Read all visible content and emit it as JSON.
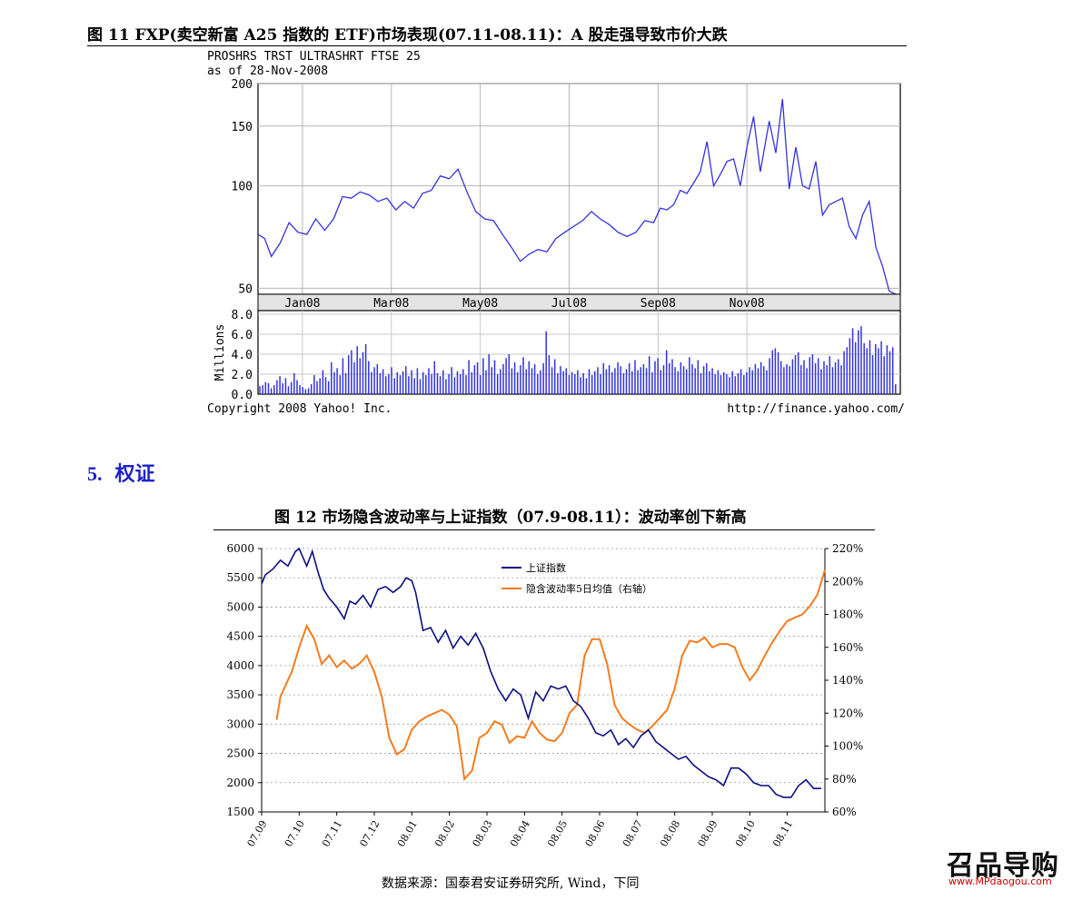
{
  "figure11": {
    "title": "图 11 FXP(卖空新富 A25 指数的 ETF)市场表现(07.11-08.11)：A 股走强导致市价大跌",
    "chart_header_line1": "PROSHRS TRST ULTRASHRT FTSE 25",
    "chart_header_line2": "as of 28-Nov-2008",
    "copyright": "Copyright 2008 Yahoo! Inc.",
    "url": "http://finance.yahoo.com/",
    "volume_axis_label": "Millions",
    "line_color": "#3333dd",
    "chart_data": {
      "type": "line",
      "title": "PROSHRS TRST ULTRASHRT FTSE 25",
      "x_ticks": [
        "Jan08",
        "Mar08",
        "May08",
        "Jul08",
        "Sep08",
        "Nov08"
      ],
      "y_ticks": [
        200,
        150,
        100,
        50
      ],
      "y_scale": "log",
      "ylim": [
        48,
        200
      ],
      "grid": true,
      "price_series": {
        "name": "",
        "x_month_index": [
          0.0,
          0.15,
          0.3,
          0.5,
          0.7,
          0.9,
          1.1,
          1.3,
          1.5,
          1.7,
          1.9,
          2.1,
          2.3,
          2.5,
          2.7,
          2.9,
          3.1,
          3.3,
          3.5,
          3.7,
          3.9,
          4.1,
          4.3,
          4.5,
          4.7,
          4.9,
          5.1,
          5.3,
          5.5,
          5.7,
          5.9,
          6.1,
          6.3,
          6.5,
          6.7,
          6.9,
          7.1,
          7.3,
          7.5,
          7.7,
          7.9,
          8.1,
          8.3,
          8.5,
          8.7,
          8.9,
          9.05,
          9.2,
          9.35,
          9.5,
          9.65,
          9.8,
          9.95,
          10.1,
          10.25,
          10.4,
          10.55,
          10.7,
          10.85,
          11.0,
          11.15,
          11.3,
          11.5,
          11.65,
          11.8,
          11.95,
          12.1,
          12.25,
          12.4,
          12.55,
          12.7,
          12.85,
          13.0,
          13.15,
          13.3,
          13.45,
          13.6,
          13.75,
          13.9,
          14.05,
          14.2,
          14.35
        ],
        "values": [
          72,
          70,
          62,
          68,
          78,
          73,
          72,
          80,
          74,
          80,
          93,
          92,
          96,
          94,
          90,
          92,
          85,
          90,
          86,
          95,
          97,
          107,
          105,
          112,
          96,
          84,
          80,
          79,
          72,
          66,
          60,
          63,
          65,
          64,
          70,
          73,
          76,
          79,
          84,
          80,
          77,
          73,
          71,
          73,
          79,
          78,
          86,
          85,
          88,
          97,
          95,
          102,
          110,
          135,
          100,
          108,
          118,
          120,
          100,
          130,
          160,
          110,
          155,
          125,
          180,
          98,
          130,
          100,
          98,
          118,
          82,
          88,
          90,
          92,
          76,
          70,
          82,
          90,
          66,
          58,
          49,
          48
        ]
      },
      "volume_ylim": [
        0,
        8
      ],
      "volume_y_ticks": [
        "8.0",
        "6.0",
        "4.0",
        "2.0",
        "0.0"
      ],
      "volume_values_millions": [
        0.8,
        0.9,
        1.2,
        1.1,
        0.6,
        0.9,
        1.4,
        1.8,
        1.1,
        1.6,
        0.8,
        1.2,
        2.1,
        1.4,
        0.9,
        0.7,
        0.5,
        0.6,
        1.0,
        1.9,
        1.3,
        1.6,
        2.4,
        1.7,
        1.3,
        3.2,
        2.2,
        2.6,
        1.9,
        3.6,
        2.1,
        3.9,
        4.4,
        3.2,
        4.8,
        3.6,
        4.2,
        5.0,
        3.3,
        2.2,
        2.7,
        3.0,
        2.1,
        2.5,
        1.8,
        2.0,
        2.7,
        1.6,
        2.2,
        1.9,
        2.3,
        2.8,
        1.8,
        2.4,
        1.6,
        2.6,
        1.5,
        2.2,
        1.9,
        2.6,
        2.0,
        3.3,
        2.1,
        1.8,
        2.4,
        1.5,
        2.0,
        2.7,
        1.7,
        2.3,
        2.0,
        2.5,
        1.9,
        3.4,
        2.2,
        2.9,
        3.2,
        1.9,
        3.6,
        2.4,
        4.0,
        2.7,
        3.4,
        2.0,
        2.5,
        3.0,
        3.6,
        4.0,
        2.6,
        3.2,
        2.2,
        2.9,
        3.7,
        2.5,
        3.3,
        2.6,
        3.0,
        2.0,
        2.4,
        3.1,
        6.3,
        3.9,
        2.7,
        3.5,
        2.1,
        2.8,
        2.3,
        2.6,
        1.9,
        2.2,
        2.0,
        2.4,
        1.7,
        2.1,
        1.6,
        2.5,
        1.9,
        2.3,
        2.7,
        2.0,
        3.1,
        2.5,
        2.9,
        2.2,
        2.6,
        3.2,
        2.8,
        2.1,
        2.5,
        3.1,
        2.3,
        3.4,
        2.4,
        2.7,
        3.0,
        2.6,
        3.8,
        2.2,
        3.3,
        3.6,
        2.4,
        2.9,
        4.4,
        3.1,
        3.5,
        2.7,
        2.3,
        3.2,
        2.8,
        2.5,
        3.7,
        3.0,
        2.6,
        3.4,
        2.1,
        2.8,
        3.1,
        2.3,
        2.6,
        2.0,
        2.4,
        1.9,
        2.2,
        2.0,
        1.7,
        2.3,
        1.8,
        2.1,
        2.5,
        1.9,
        2.2,
        2.7,
        2.4,
        3.0,
        2.6,
        3.2,
        2.8,
        2.4,
        3.6,
        4.4,
        4.6,
        4.2,
        3.3,
        2.7,
        3.0,
        2.8,
        3.5,
        3.9,
        4.2,
        2.9,
        3.4,
        2.6,
        3.7,
        4.0,
        3.1,
        3.6,
        2.5,
        3.3,
        2.9,
        3.8,
        2.7,
        3.2,
        3.5,
        2.9,
        4.3,
        4.7,
        5.6,
        6.6,
        5.2,
        6.4,
        6.8,
        5.1,
        4.6,
        5.4,
        3.9,
        5.0,
        4.6,
        5.3,
        3.8,
        4.9,
        4.3,
        4.7,
        1.0
      ]
    }
  },
  "section5": {
    "number": "5.",
    "title": "权证"
  },
  "figure12": {
    "title": "图 12  市场隐含波动率与上证指数（07.9-08.11）：波动率创下新高",
    "source_note": "数据来源：国泰君安证券研究所, Wind，下同",
    "colors": {
      "sh_index": "#0b0f80",
      "implied_vol": "#f57c1f"
    },
    "chart_data": {
      "type": "line",
      "title": "",
      "xlabel": "",
      "ylabel": "",
      "grid": true,
      "legend_position": "top-center",
      "x_tick_labels": [
        "07.09",
        "07.10",
        "07.11",
        "07.12",
        "08.01",
        "08.02",
        "08.03",
        "08.04",
        "08.05",
        "08.06",
        "08.07",
        "08.08",
        "08.09",
        "08.10",
        "08.11"
      ],
      "ylim_left": [
        1500,
        6000
      ],
      "y_ticks_left": [
        "6000",
        "5500",
        "5000",
        "4500",
        "4000",
        "3500",
        "3000",
        "2500",
        "2000",
        "1500"
      ],
      "ylim_right": [
        0.6,
        2.2
      ],
      "y_ticks_right": [
        "220%",
        "200%",
        "180%",
        "160%",
        "140%",
        "120%",
        "100%",
        "80%",
        "60%"
      ],
      "series": [
        {
          "name": "上证指数",
          "axis": "left",
          "x": [
            0.0,
            0.1,
            0.3,
            0.5,
            0.7,
            0.9,
            1.0,
            1.2,
            1.35,
            1.5,
            1.65,
            1.8,
            2.0,
            2.2,
            2.35,
            2.5,
            2.7,
            2.9,
            3.1,
            3.3,
            3.5,
            3.7,
            3.85,
            4.0,
            4.1,
            4.3,
            4.5,
            4.7,
            4.9,
            5.1,
            5.3,
            5.5,
            5.7,
            5.9,
            6.1,
            6.3,
            6.5,
            6.7,
            6.9,
            7.1,
            7.3,
            7.5,
            7.7,
            7.9,
            8.1,
            8.3,
            8.5,
            8.7,
            8.9,
            9.1,
            9.3,
            9.5,
            9.7,
            9.9,
            10.1,
            10.3,
            10.5,
            10.7,
            10.9,
            11.1,
            11.3,
            11.5,
            11.7,
            11.9,
            12.1,
            12.3,
            12.5,
            12.7,
            12.9,
            13.1,
            13.3,
            13.5,
            13.7,
            13.9,
            14.1,
            14.3,
            14.5,
            14.7,
            14.9
          ],
          "values": [
            5400,
            5550,
            5650,
            5800,
            5700,
            5950,
            6050,
            5700,
            5950,
            5600,
            5300,
            5150,
            5000,
            4800,
            5100,
            5050,
            5200,
            5000,
            5300,
            5350,
            5250,
            5350,
            5500,
            5450,
            5250,
            4600,
            4650,
            4400,
            4600,
            4300,
            4500,
            4350,
            4550,
            4300,
            3900,
            3600,
            3400,
            3600,
            3500,
            3100,
            3550,
            3400,
            3650,
            3600,
            3650,
            3400,
            3300,
            3100,
            2850,
            2800,
            2900,
            2650,
            2750,
            2600,
            2800,
            2900,
            2700,
            2600,
            2500,
            2400,
            2450,
            2300,
            2200,
            2100,
            2050,
            1950,
            2250,
            2250,
            2150,
            2000,
            1950,
            1950,
            1800,
            1750,
            1750,
            1950,
            2050,
            1900,
            1900
          ]
        },
        {
          "name": "隐含波动率5日均值（右轴）",
          "axis": "right",
          "x": [
            0.4,
            0.5,
            0.6,
            0.8,
            1.0,
            1.2,
            1.4,
            1.6,
            1.8,
            2.0,
            2.2,
            2.4,
            2.6,
            2.8,
            3.0,
            3.2,
            3.4,
            3.6,
            3.8,
            4.0,
            4.2,
            4.4,
            4.6,
            4.8,
            5.0,
            5.2,
            5.4,
            5.6,
            5.8,
            6.0,
            6.2,
            6.4,
            6.6,
            6.8,
            7.0,
            7.2,
            7.4,
            7.6,
            7.8,
            8.0,
            8.2,
            8.4,
            8.6,
            8.8,
            9.0,
            9.2,
            9.4,
            9.6,
            9.8,
            10.0,
            10.2,
            10.4,
            10.6,
            10.8,
            11.0,
            11.2,
            11.4,
            11.6,
            11.8,
            12.0,
            12.2,
            12.4,
            12.6,
            12.8,
            13.0,
            13.2,
            13.4,
            13.6,
            13.8,
            14.0,
            14.2,
            14.4,
            14.6,
            14.8,
            15.0
          ],
          "values": [
            1.16,
            1.3,
            1.35,
            1.45,
            1.6,
            1.73,
            1.65,
            1.5,
            1.55,
            1.48,
            1.52,
            1.47,
            1.5,
            1.55,
            1.45,
            1.3,
            1.05,
            0.95,
            0.98,
            1.1,
            1.15,
            1.18,
            1.2,
            1.22,
            1.19,
            1.12,
            0.8,
            0.85,
            1.05,
            1.08,
            1.15,
            1.13,
            1.02,
            1.06,
            1.05,
            1.15,
            1.08,
            1.04,
            1.03,
            1.08,
            1.2,
            1.25,
            1.55,
            1.65,
            1.65,
            1.5,
            1.25,
            1.17,
            1.13,
            1.1,
            1.08,
            1.12,
            1.17,
            1.22,
            1.35,
            1.55,
            1.64,
            1.63,
            1.66,
            1.6,
            1.62,
            1.62,
            1.6,
            1.48,
            1.4,
            1.46,
            1.55,
            1.63,
            1.7,
            1.76,
            1.78,
            1.8,
            1.85,
            1.92,
            2.07
          ]
        }
      ]
    }
  },
  "watermark": {
    "main_text": "召品导购",
    "url": "www.MPdaogou.com"
  }
}
